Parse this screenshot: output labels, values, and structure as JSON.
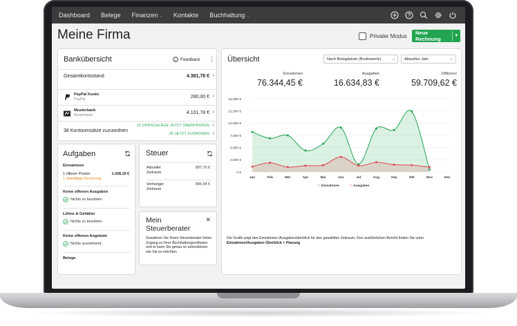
{
  "nav": {
    "items": [
      {
        "label": "Dashboard",
        "dropdown": false
      },
      {
        "label": "Belege",
        "dropdown": false
      },
      {
        "label": "Finanzen",
        "dropdown": true
      },
      {
        "label": "Kontakte",
        "dropdown": false
      },
      {
        "label": "Buchhaltung",
        "dropdown": true
      }
    ],
    "icons": [
      "plus-circle-icon",
      "help-icon",
      "search-icon",
      "settings-icon",
      "power-icon"
    ]
  },
  "header": {
    "title": "Meine Firma",
    "private_mode_label": "Privater Modus",
    "new_invoice_label": "Neue Rechnung"
  },
  "bank": {
    "title": "Bankübersicht",
    "feedback_label": "Feedback",
    "total_label": "Gesamtkontostand",
    "total_value": "4.381,78 €",
    "accounts": [
      {
        "name": "PayPal Konto",
        "sub": "PayPal",
        "value": "280,00 €",
        "icon": "paypal-icon"
      },
      {
        "name": "Musterbank",
        "sub": "Musterbank",
        "value": "4.101,78 €",
        "icon": "bank-icon"
      }
    ],
    "unassigned_label": "38 Kontoumsätze zuzuordnen",
    "link_review": "13 VORSCHLÄGE JETZT ÜBERPRÜFEN",
    "link_assign": "25 JETZT ZUORDNEN"
  },
  "tasks": {
    "title": "Aufgaben",
    "income_title": "Einnahmen",
    "open_item_label": "1 offener Posten",
    "open_item_value": "1.028,16 €",
    "overdue_label": "1 überfällige Rechnung",
    "expenses_title": "Keine offenen Ausgaben",
    "expenses_ok": "Nichts zu bezahlen.",
    "salaries_title": "Löhne & Gehälter",
    "salaries_ok": "Nichts zu bezahlen.",
    "offers_title": "Keine offenen Angebote",
    "offers_ok": "Nichts ausstehend.",
    "receipts_title": "Belege"
  },
  "tax": {
    "title": "Steuer",
    "current_label_1": "Aktueller",
    "current_label_2": "Zeitraum",
    "current_value": "897,70 €",
    "previous_label_1": "Vorheriger",
    "previous_label_2": "Zeitraum",
    "previous_value": "896,94 €"
  },
  "advisor": {
    "title_1": "Mein",
    "title_2": "Steuerberater",
    "text": "Gewähren Sie Ihrem Steuerberater freien Zugang zu Ihrer Buchhaltungssoftware und er kann Sie genau so unterstützen, wie Sie es möchten"
  },
  "overview": {
    "title": "Übersicht",
    "filter_basis": "Nach Belegdatum (Bruttowerte)",
    "filter_period": "Aktuelles Jahr",
    "income_label": "Einnahmen",
    "income_value": "76.344,45 €",
    "expenses_label": "Ausgaben",
    "expenses_value": "16.634,83 €",
    "diff_label": "Differenz",
    "diff_value": "59.709,62 €",
    "description": "Die Grafik zeigt den Einnahmen-/Ausgabenüberblick für den gewählten Zeitraum. Den ausführlichen Bericht finden Sie unter",
    "description_link": "Einnahmen/Ausgaben-Überblick + Planung"
  },
  "chart_data": {
    "type": "area",
    "categories": [
      "Jan",
      "Feb",
      "Mär",
      "Apr",
      "Mai",
      "Jun",
      "Jul",
      "Aug",
      "Sep",
      "Okt",
      "Nov",
      "Dez"
    ],
    "series": [
      {
        "name": "Einnahmen",
        "values": [
          8200,
          6900,
          7500,
          4400,
          5800,
          9100,
          1600,
          8900,
          8600,
          12400,
          500,
          null
        ],
        "color": "#21a550"
      },
      {
        "name": "Ausgaben",
        "values": [
          1100,
          1900,
          1000,
          1300,
          1400,
          3100,
          1300,
          2000,
          1500,
          1400,
          1000,
          null
        ],
        "color": "#e0484f"
      }
    ],
    "yticks": [
      "0 €",
      "2.500 €",
      "5.000 €",
      "7.500 €",
      "10.000 €",
      "12.500 €",
      "15.000 €"
    ],
    "ylim": [
      0,
      15000
    ],
    "grid": true,
    "legend": "bottom-center"
  }
}
